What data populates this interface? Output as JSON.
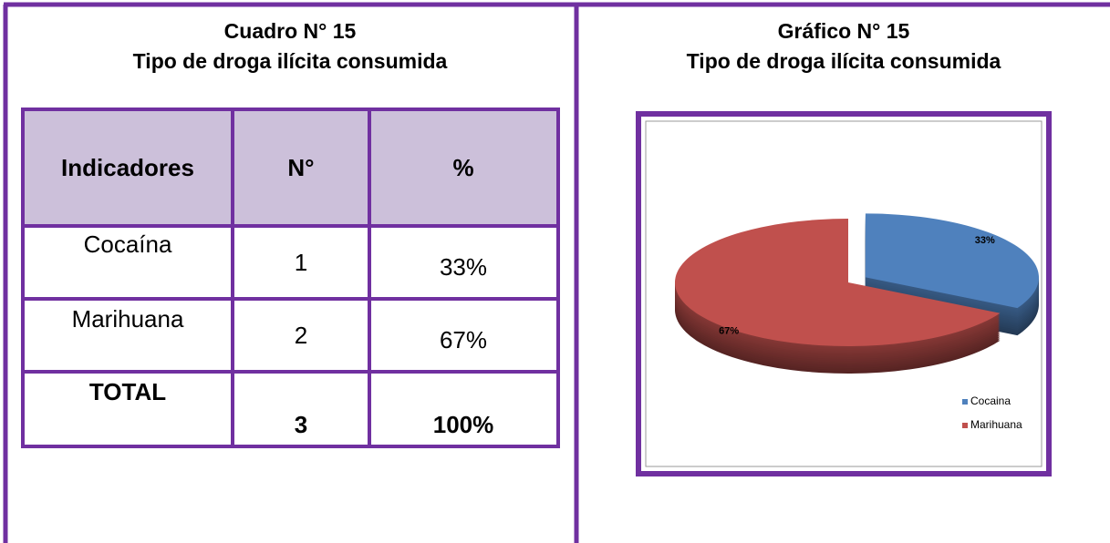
{
  "left": {
    "title": [
      "Cuadro N° 15",
      "Tipo de droga ilícita consumida"
    ],
    "table": {
      "header": [
        "Indicadores",
        "N°",
        "%"
      ],
      "rows": [
        [
          "Cocaína",
          "1",
          "33%"
        ],
        [
          "Marihuana",
          "2",
          "67%"
        ],
        [
          "TOTAL",
          "3",
          "100%"
        ]
      ]
    }
  },
  "chart_data": {
    "type": "pie",
    "title": "Gráfico N° 15",
    "subtitle": "Tipo de droga ilícita consumida",
    "categories": [
      "Cocaina",
      "Marihuana"
    ],
    "values": [
      33,
      67
    ],
    "value_labels": [
      "33%",
      "67%"
    ],
    "colors": [
      "#4f81bd",
      "#c0504d"
    ],
    "legend": "right"
  }
}
